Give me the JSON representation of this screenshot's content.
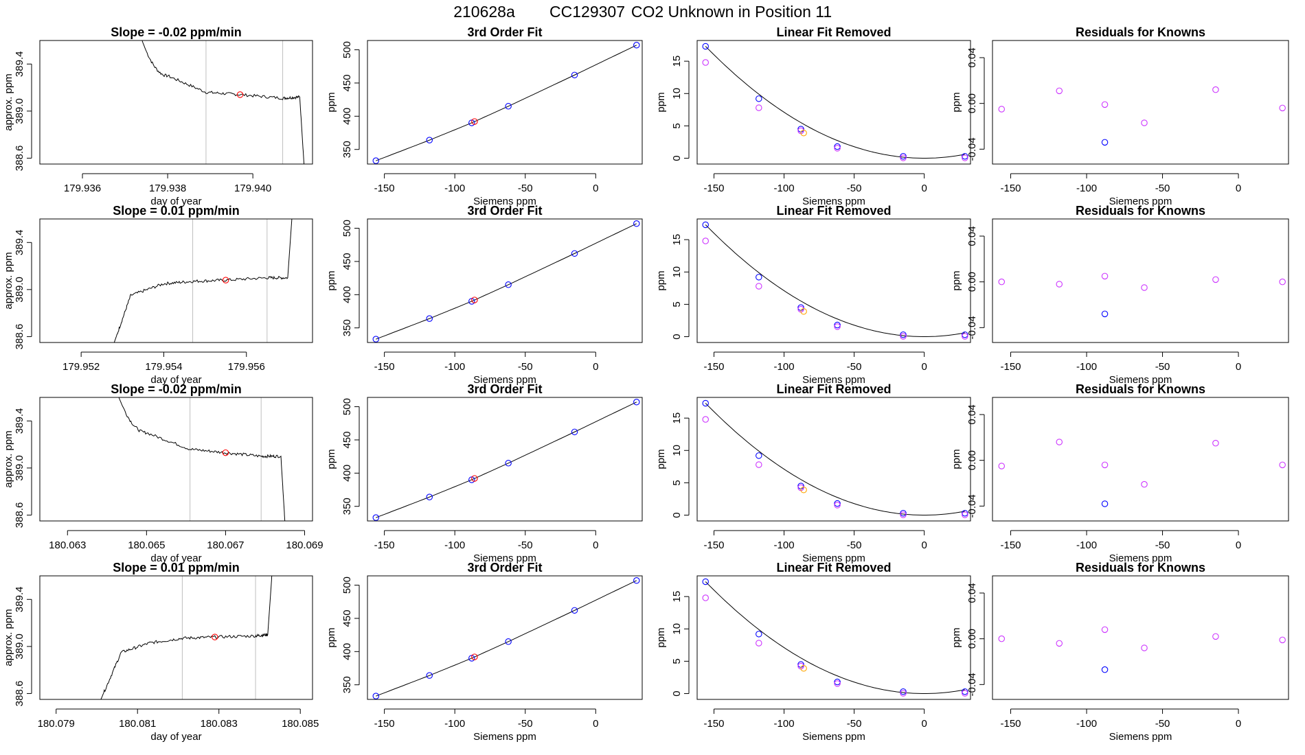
{
  "figure": {
    "title_parts": [
      "210628a",
      "CC129307",
      "CO2 Unknown in Position  11"
    ]
  },
  "colors": {
    "line": "#000000",
    "window_lines": "#bebebe",
    "point_red": "#ff0000",
    "point_blue": "#0000ff",
    "point_magenta": "#cc33ff",
    "point_orange": "#ffa500"
  },
  "shared": {
    "fit_knowns": [
      {
        "x": -156,
        "fit": 333,
        "lin": 17.3,
        "resid_y": [
          -0.005,
          0.0,
          -0.005,
          0.0
        ]
      },
      {
        "x": -118,
        "fit": 364,
        "lin": 9.2,
        "resid_y": [
          0.011,
          -0.002,
          0.016,
          -0.004
        ]
      },
      {
        "x": -88,
        "fit": 390,
        "lin": 4.5,
        "resid_y": [
          -0.001,
          0.005,
          -0.004,
          0.008
        ]
      },
      {
        "x": -62,
        "fit": 415,
        "lin": 1.8,
        "resid_y": [
          -0.017,
          -0.005,
          -0.021,
          -0.008
        ]
      },
      {
        "x": -15,
        "fit": 462,
        "lin": 0.3,
        "resid_y": [
          0.012,
          0.002,
          0.015,
          0.002
        ]
      },
      {
        "x": 29,
        "fit": 507,
        "lin": 0.3,
        "resid_y": [
          -0.004,
          0.0,
          -0.004,
          -0.001
        ]
      }
    ],
    "unknown_point": {
      "x": -86,
      "fit": 392,
      "lin": 4.2
    },
    "magenta_offsets": [
      {
        "x": -156,
        "lin": 14.8
      },
      {
        "x": -118,
        "lin": 7.8
      }
    ],
    "blue_resid": {
      "x": -88,
      "y": [
        -0.034,
        -0.028,
        -0.038,
        -0.027
      ]
    }
  },
  "rows": [
    {
      "slope_title": "Slope =  -0.02  ppm/min",
      "xticks": [
        "179.936",
        "179.938",
        "179.940"
      ],
      "xtick_vals": [
        179.936,
        179.938,
        179.94
      ],
      "xlim": [
        179.935,
        179.9414
      ],
      "window": [
        179.9389,
        179.9407
      ],
      "red_point": {
        "x": 179.9397,
        "y": 389.14
      },
      "shape": "falling"
    },
    {
      "slope_title": "Slope =  0.01  ppm/min",
      "xticks": [
        "179.952",
        "179.954",
        "179.956"
      ],
      "xtick_vals": [
        179.952,
        179.954,
        179.956
      ],
      "xlim": [
        179.951,
        179.9576
      ],
      "window": [
        179.9547,
        179.9565
      ],
      "red_point": {
        "x": 179.9555,
        "y": 389.08
      },
      "shape": "rising"
    },
    {
      "slope_title": "Slope =  -0.02  ppm/min",
      "xticks": [
        "180.063",
        "180.065",
        "180.067",
        "180.069"
      ],
      "xtick_vals": [
        180.063,
        180.065,
        180.067,
        180.069
      ],
      "xlim": [
        180.0623,
        180.0692
      ],
      "window": [
        180.0661,
        180.0679
      ],
      "red_point": {
        "x": 180.067,
        "y": 389.13
      },
      "shape": "falling"
    },
    {
      "slope_title": "Slope =  0.01  ppm/min",
      "xticks": [
        "180.079",
        "180.081",
        "180.083",
        "180.085"
      ],
      "xtick_vals": [
        180.079,
        180.081,
        180.083,
        180.085
      ],
      "xlim": [
        180.0786,
        180.0853
      ],
      "window": [
        180.0821,
        180.0839
      ],
      "red_point": {
        "x": 180.0829,
        "y": 389.08
      },
      "shape": "rising"
    }
  ],
  "panel_titles": {
    "fit": "3rd Order Fit",
    "lin": "Linear Fit Removed",
    "resid": "Residuals for Knowns"
  },
  "axis_labels": {
    "time_x": "day of year",
    "time_y": "approx. ppm",
    "siemens_x": "Siemens ppm",
    "ppm_y": "ppm"
  },
  "ticks": {
    "time_y": [
      "388.6",
      "389.0",
      "389.4"
    ],
    "time_y_vals": [
      388.6,
      389.0,
      389.4
    ],
    "siemens_x": [
      "-150",
      "-100",
      "-50",
      "0"
    ],
    "siemens_x_vals": [
      -150,
      -100,
      -50,
      0
    ],
    "fit_y": [
      "350",
      "400",
      "450",
      "500"
    ],
    "fit_y_vals": [
      350,
      400,
      450,
      500
    ],
    "lin_y": [
      "0",
      "5",
      "10",
      "15"
    ],
    "lin_y_vals": [
      0,
      5,
      10,
      15
    ],
    "resid_y": [
      "-0.04",
      "0.00",
      "0.04"
    ],
    "resid_y_vals": [
      -0.04,
      0.0,
      0.04
    ]
  },
  "chart_data": [
    {
      "type": "line",
      "title": "Slope =  -0.02  ppm/min",
      "xlabel": "day of year",
      "ylabel": "approx. ppm",
      "xlim": [
        179.935,
        179.9414
      ],
      "ylim": [
        388.55,
        389.6
      ],
      "series": [
        {
          "x": [
            179.9374,
            179.938,
            179.9389,
            179.9397,
            179.9407,
            179.9411,
            179.9412
          ],
          "values": [
            389.6,
            389.3,
            389.16,
            389.14,
            389.11,
            389.12,
            388.55
          ]
        }
      ]
    },
    {
      "type": "line",
      "title": "Slope =  0.01  ppm/min",
      "xlabel": "day of year",
      "ylabel": "approx. ppm",
      "xlim": [
        179.951,
        179.9576
      ],
      "ylim": [
        388.55,
        389.6
      ],
      "series": [
        {
          "x": [
            179.9528,
            179.9532,
            179.954,
            179.9547,
            179.9555,
            179.9565,
            179.957,
            179.9571
          ],
          "values": [
            388.55,
            388.95,
            389.05,
            389.07,
            389.08,
            389.1,
            389.1,
            389.6
          ]
        }
      ]
    },
    {
      "type": "line",
      "title": "Slope =  -0.02  ppm/min",
      "xlabel": "day of year",
      "ylabel": "approx. ppm",
      "xlim": [
        180.0623,
        180.0692
      ],
      "ylim": [
        388.55,
        389.6
      ],
      "series": [
        {
          "x": [
            180.0643,
            180.065,
            180.0661,
            180.067,
            180.0679,
            180.0684,
            180.0685
          ],
          "values": [
            389.6,
            389.3,
            389.16,
            389.13,
            389.1,
            389.1,
            388.55
          ]
        }
      ]
    },
    {
      "type": "line",
      "title": "Slope =  0.01  ppm/min",
      "xlabel": "day of year",
      "ylabel": "approx. ppm",
      "xlim": [
        180.0786,
        180.0853
      ],
      "ylim": [
        388.55,
        389.6
      ],
      "series": [
        {
          "x": [
            180.0801,
            180.0806,
            180.0813,
            180.0821,
            180.0829,
            180.0839,
            180.0842,
            180.0843
          ],
          "values": [
            388.55,
            388.95,
            389.03,
            389.07,
            389.08,
            389.09,
            389.1,
            389.6
          ]
        }
      ]
    },
    {
      "type": "scatter",
      "title": "3rd Order Fit",
      "xlabel": "Siemens ppm",
      "ylabel": "ppm",
      "x": [
        -156,
        -118,
        -88,
        -86,
        -62,
        -15,
        29
      ],
      "series": [
        {
          "values": [
            333,
            364,
            390,
            392,
            415,
            462,
            507
          ]
        }
      ]
    },
    {
      "type": "scatter",
      "title": "Linear Fit Removed",
      "xlabel": "Siemens ppm",
      "ylabel": "ppm",
      "x": [
        -156,
        -156,
        -118,
        -118,
        -88,
        -86,
        -62,
        -15,
        29
      ],
      "series": [
        {
          "values": [
            17.3,
            14.8,
            9.2,
            7.8,
            4.5,
            4.2,
            1.8,
            0.3,
            0.3
          ]
        }
      ]
    },
    {
      "type": "scatter",
      "title": "Residuals for Knowns",
      "xlabel": "Siemens ppm",
      "ylabel": "ppm",
      "x": [
        -156,
        -118,
        -88,
        -62,
        -15,
        29
      ],
      "series": [
        {
          "values": [
            -0.005,
            0.011,
            -0.001,
            -0.017,
            0.012,
            -0.004
          ]
        }
      ]
    }
  ]
}
